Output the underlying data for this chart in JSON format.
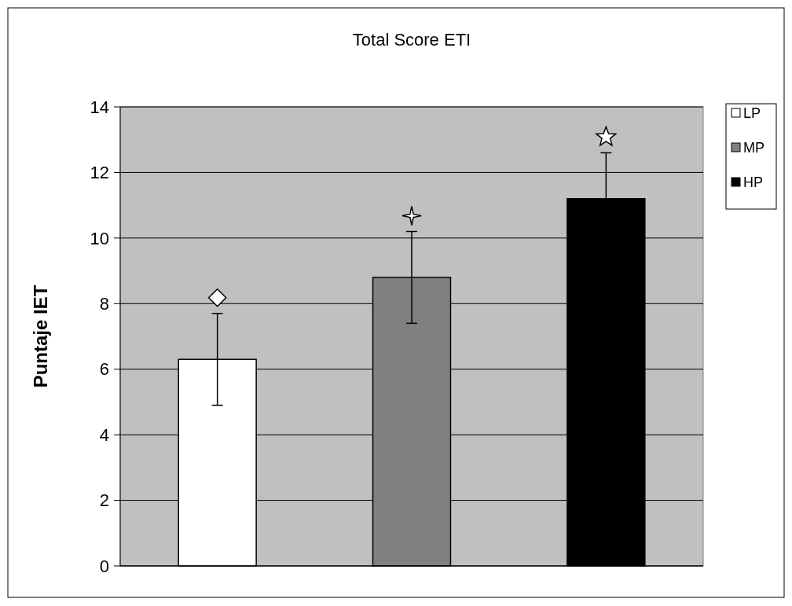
{
  "chart_data": {
    "type": "bar",
    "title": "Total Score ETI",
    "ylabel": "Puntaje IET",
    "categories": [
      null
    ],
    "series": [
      {
        "name": "LP",
        "color": "#ffffff",
        "values": [
          6.3
        ],
        "errors": [
          1.4
        ]
      },
      {
        "name": "MP",
        "color": "#808080",
        "values": [
          8.8
        ],
        "errors": [
          1.4
        ]
      },
      {
        "name": "HP",
        "color": "#000000",
        "values": [
          11.2
        ],
        "errors": [
          1.4
        ]
      }
    ],
    "ylim": [
      0,
      14
    ],
    "yticks": [
      0,
      2,
      4,
      6,
      8,
      10,
      12,
      14
    ],
    "grid": "y",
    "legend": "right"
  }
}
